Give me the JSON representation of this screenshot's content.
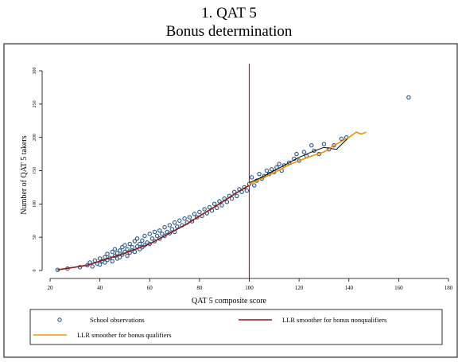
{
  "chart_data": {
    "type": "scatter",
    "title": "1. QAT 5",
    "subtitle": "Bonus determination",
    "x_label": "QAT 5 composite score",
    "y_label": "Number of QAT 5 takers",
    "xlim": [
      20,
      180
    ],
    "xticks": [
      20,
      40,
      60,
      80,
      100,
      120,
      140,
      160,
      180
    ],
    "ylim": [
      0,
      300
    ],
    "yticks": [
      0,
      50,
      100,
      150,
      200,
      250,
      300
    ],
    "vline": 100,
    "vline_color": "#b0163c",
    "series": [
      {
        "name": "School observations",
        "kind": "scatter",
        "color": "#1f4e79",
        "x": [
          23,
          27,
          32,
          35,
          36,
          37,
          38,
          39,
          40,
          40,
          41,
          42,
          42,
          43,
          43,
          44,
          45,
          45,
          46,
          46,
          47,
          47,
          48,
          48,
          49,
          49,
          50,
          50,
          51,
          51,
          52,
          52,
          53,
          53,
          54,
          54,
          55,
          55,
          56,
          56,
          57,
          57,
          58,
          58,
          59,
          60,
          60,
          61,
          62,
          62,
          63,
          64,
          64,
          65,
          66,
          66,
          67,
          68,
          68,
          69,
          70,
          70,
          71,
          72,
          73,
          74,
          75,
          76,
          77,
          78,
          79,
          80,
          81,
          82,
          83,
          84,
          85,
          86,
          87,
          88,
          89,
          90,
          91,
          92,
          93,
          94,
          95,
          96,
          97,
          98,
          99,
          100,
          101,
          102,
          103,
          104,
          105,
          106,
          107,
          108,
          109,
          110,
          111,
          112,
          113,
          114,
          116,
          118,
          119,
          120,
          122,
          123,
          125,
          126,
          128,
          130,
          132,
          134,
          137,
          139,
          164
        ],
        "values": [
          1,
          3,
          5,
          8,
          12,
          6,
          15,
          10,
          18,
          9,
          14,
          20,
          12,
          25,
          16,
          19,
          28,
          14,
          22,
          32,
          18,
          26,
          30,
          20,
          35,
          24,
          28,
          38,
          22,
          32,
          40,
          27,
          35,
          30,
          44,
          28,
          36,
          48,
          32,
          40,
          45,
          35,
          52,
          38,
          42,
          55,
          40,
          48,
          58,
          44,
          52,
          60,
          48,
          55,
          65,
          52,
          58,
          68,
          56,
          62,
          72,
          58,
          66,
          75,
          68,
          78,
          72,
          80,
          74,
          85,
          80,
          88,
          82,
          92,
          86,
          95,
          90,
          100,
          94,
          104,
          98,
          108,
          103,
          112,
          108,
          118,
          112,
          122,
          118,
          125,
          120,
          130,
          140,
          128,
          135,
          145,
          138,
          142,
          150,
          145,
          152,
          148,
          155,
          160,
          150,
          158,
          162,
          168,
          175,
          165,
          178,
          172,
          188,
          180,
          175,
          190,
          182,
          188,
          198,
          200,
          260
        ]
      },
      {
        "name": "LLR smoother for bonus nonqualifiers",
        "kind": "line",
        "color": "#8b1a1a",
        "x": [
          23,
          30,
          35,
          40,
          45,
          50,
          55,
          60,
          65,
          70,
          75,
          80,
          85,
          90,
          95,
          100
        ],
        "values": [
          1,
          5,
          8,
          14,
          20,
          26,
          33,
          40,
          50,
          60,
          70,
          82,
          93,
          105,
          117,
          128
        ]
      },
      {
        "name": "LLR smoother for bonus qualifiers",
        "kind": "line",
        "color": "#f0900a",
        "x": [
          100,
          105,
          110,
          115,
          120,
          125,
          130,
          135,
          140,
          143,
          145,
          147
        ],
        "values": [
          130,
          138,
          147,
          157,
          165,
          172,
          178,
          190,
          200,
          208,
          205,
          208
        ]
      },
      {
        "kind": "line",
        "color": "#000000",
        "x": [
          100,
          105,
          110,
          115,
          120,
          125,
          130,
          135,
          140
        ],
        "values": [
          132,
          140,
          150,
          160,
          170,
          178,
          185,
          182,
          200
        ]
      }
    ]
  }
}
